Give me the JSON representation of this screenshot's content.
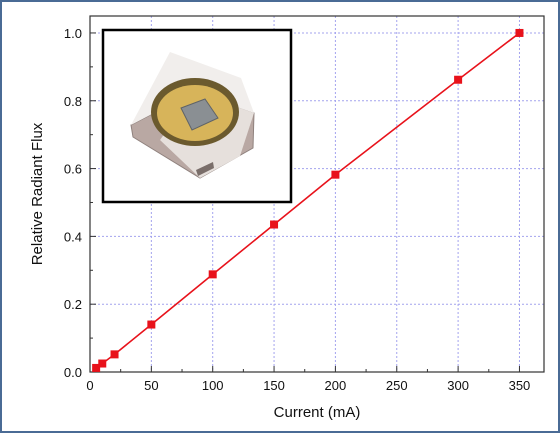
{
  "chart_data": {
    "type": "line",
    "title": "",
    "xlabel": "Current (mA)",
    "ylabel": "Relative Radiant Flux",
    "xlim": [
      0,
      370
    ],
    "ylim": [
      0,
      1.05
    ],
    "xticks": [
      0,
      50,
      100,
      150,
      200,
      250,
      300,
      350
    ],
    "yticks": [
      0.0,
      0.2,
      0.4,
      0.6,
      0.8,
      1.0
    ],
    "xtick_labels": [
      "0",
      "50",
      "100",
      "150",
      "200",
      "250",
      "300",
      "350"
    ],
    "ytick_labels": [
      "0.0",
      "0.2",
      "0.4",
      "0.6",
      "0.8",
      "1.0"
    ],
    "grid": true,
    "series": [
      {
        "color": "#e8121b",
        "marker": "square",
        "x": [
          5,
          10,
          20,
          50,
          100,
          150,
          200,
          300,
          350
        ],
        "y": [
          0.012,
          0.025,
          0.052,
          0.14,
          0.288,
          0.435,
          0.582,
          0.862,
          1.0
        ]
      }
    ],
    "inset": {
      "type": "photo",
      "subject": "LED package",
      "frame_color": "#000000"
    }
  }
}
